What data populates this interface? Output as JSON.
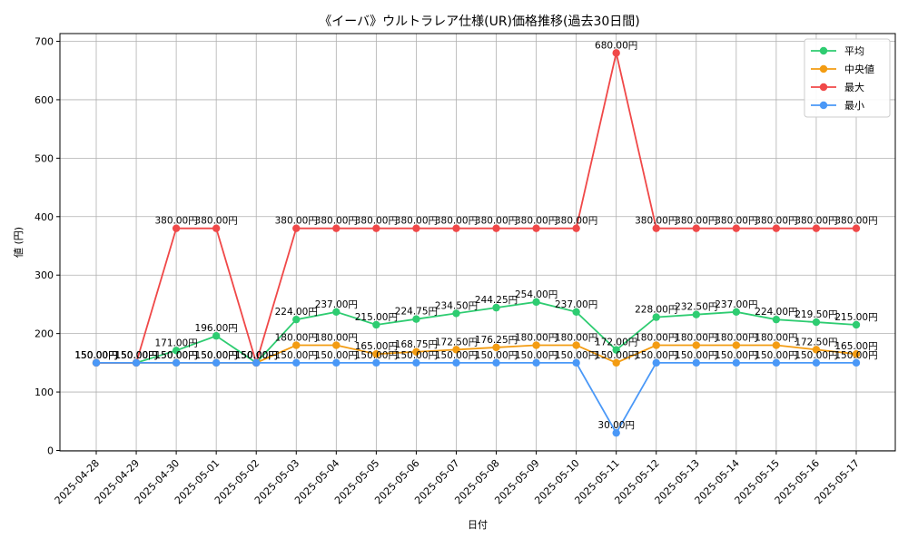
{
  "chart_data": {
    "type": "line",
    "title": "《イーバ》ウルトラレア仕様(UR)価格推移(過去30日間)",
    "xlabel": "日付",
    "ylabel": "値 (円)",
    "ylim": [
      0,
      700
    ],
    "yticks": [
      0,
      100,
      200,
      300,
      400,
      500,
      600,
      700
    ],
    "grid": true,
    "legend_position": "top-right",
    "categories": [
      "2025-04-28",
      "2025-04-29",
      "2025-04-30",
      "2025-05-01",
      "2025-05-02",
      "2025-05-03",
      "2025-05-04",
      "2025-05-05",
      "2025-05-06",
      "2025-05-07",
      "2025-05-08",
      "2025-05-09",
      "2025-05-10",
      "2025-05-11",
      "2025-05-12",
      "2025-05-13",
      "2025-05-14",
      "2025-05-15",
      "2025-05-16",
      "2025-05-17"
    ],
    "series": [
      {
        "name": "平均",
        "color": "#2ecc71",
        "values": [
          150,
          150,
          171,
          196,
          150,
          224,
          237,
          215,
          224.75,
          234.5,
          244.25,
          254,
          237,
          172,
          228,
          232.5,
          237,
          224,
          219.5,
          215
        ],
        "labels": [
          "150.00円",
          "150.00円",
          "171.00円",
          "196.00円",
          "150.00円",
          "224.00円",
          "237.00円",
          "215.00円",
          "224.75円",
          "234.50円",
          "244.25円",
          "254.00円",
          "237.00円",
          "172.00円",
          "228.00円",
          "232.50円",
          "237.00円",
          "224.00円",
          "219.50円",
          "215.00円"
        ]
      },
      {
        "name": "中央値",
        "color": "#f39c12",
        "values": [
          150,
          150,
          150,
          150,
          150,
          180,
          180,
          165,
          168.75,
          172.5,
          176.25,
          180,
          180,
          150,
          180,
          180,
          180,
          180,
          172.5,
          165
        ],
        "labels": [
          "150.00円",
          "150.00円",
          "150.00円",
          "150.00円",
          "150.00円",
          "180.00円",
          "180.00円",
          "165.00円",
          "168.75円",
          "172.50円",
          "176.25円",
          "180.00円",
          "180.00円",
          "150.00円",
          "180.00円",
          "180.00円",
          "180.00円",
          "180.00円",
          "172.50円",
          "165.00円"
        ]
      },
      {
        "name": "最大",
        "color": "#f04848",
        "values": [
          150,
          150,
          380,
          380,
          150,
          380,
          380,
          380,
          380,
          380,
          380,
          380,
          380,
          680,
          380,
          380,
          380,
          380,
          380,
          380
        ],
        "labels": [
          "150.00円",
          "150.00円",
          "380.00円",
          "380.00円",
          "150.00円",
          "380.00円",
          "380.00円",
          "380.00円",
          "380.00円",
          "380.00円",
          "380.00円",
          "380.00円",
          "380.00円",
          "680.00円",
          "380.00円",
          "380.00円",
          "380.00円",
          "380.00円",
          "380.00円",
          "380.00円"
        ]
      },
      {
        "name": "最小",
        "color": "#4a98f7",
        "values": [
          150,
          150,
          150,
          150,
          150,
          150,
          150,
          150,
          150,
          150,
          150,
          150,
          150,
          30,
          150,
          150,
          150,
          150,
          150,
          150
        ],
        "labels": [
          "150.00円",
          "150.00円",
          "150.00円",
          "150.00円",
          "150.00円",
          "150.00円",
          "150.00円",
          "150.00円",
          "150.00円",
          "150.00円",
          "150.00円",
          "150.00円",
          "150.00円",
          "30.00円",
          "150.00円",
          "150.00円",
          "150.00円",
          "150.00円",
          "150.00円",
          "150.00円"
        ]
      }
    ]
  }
}
